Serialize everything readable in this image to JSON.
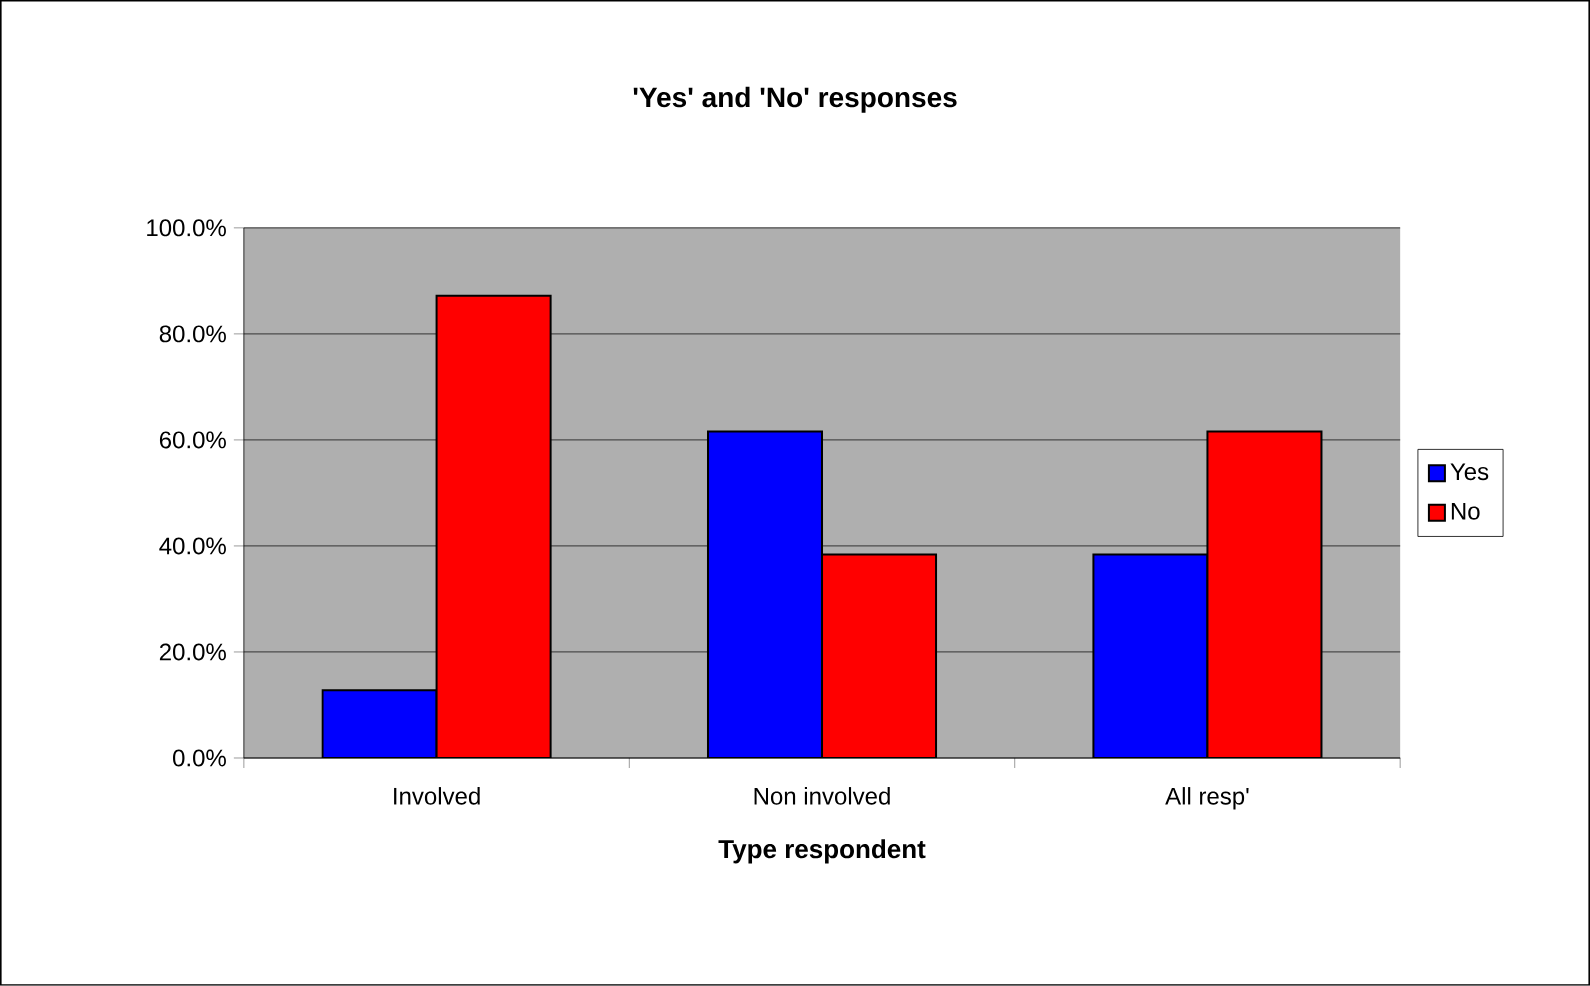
{
  "chart_data": {
    "type": "bar",
    "title": "'Yes' and 'No' responses",
    "xlabel": "Type respondent",
    "categories": [
      "Involved",
      "Non involved",
      "All resp'"
    ],
    "series": [
      {
        "name": "Yes",
        "color": "#0000ff",
        "values": [
          12.8,
          61.6,
          38.4
        ]
      },
      {
        "name": "No",
        "color": "#ff0000",
        "values": [
          87.2,
          38.4,
          61.6
        ]
      }
    ],
    "ylim": [
      0,
      100
    ],
    "yticks": [
      {
        "value": 0,
        "label": "0.0%"
      },
      {
        "value": 20,
        "label": "20.0%"
      },
      {
        "value": 40,
        "label": "40.0%"
      },
      {
        "value": 60,
        "label": "60.0%"
      },
      {
        "value": 80,
        "label": "80.0%"
      },
      {
        "value": 100,
        "label": "100.0%"
      }
    ],
    "grid": "y",
    "legend": "right"
  }
}
